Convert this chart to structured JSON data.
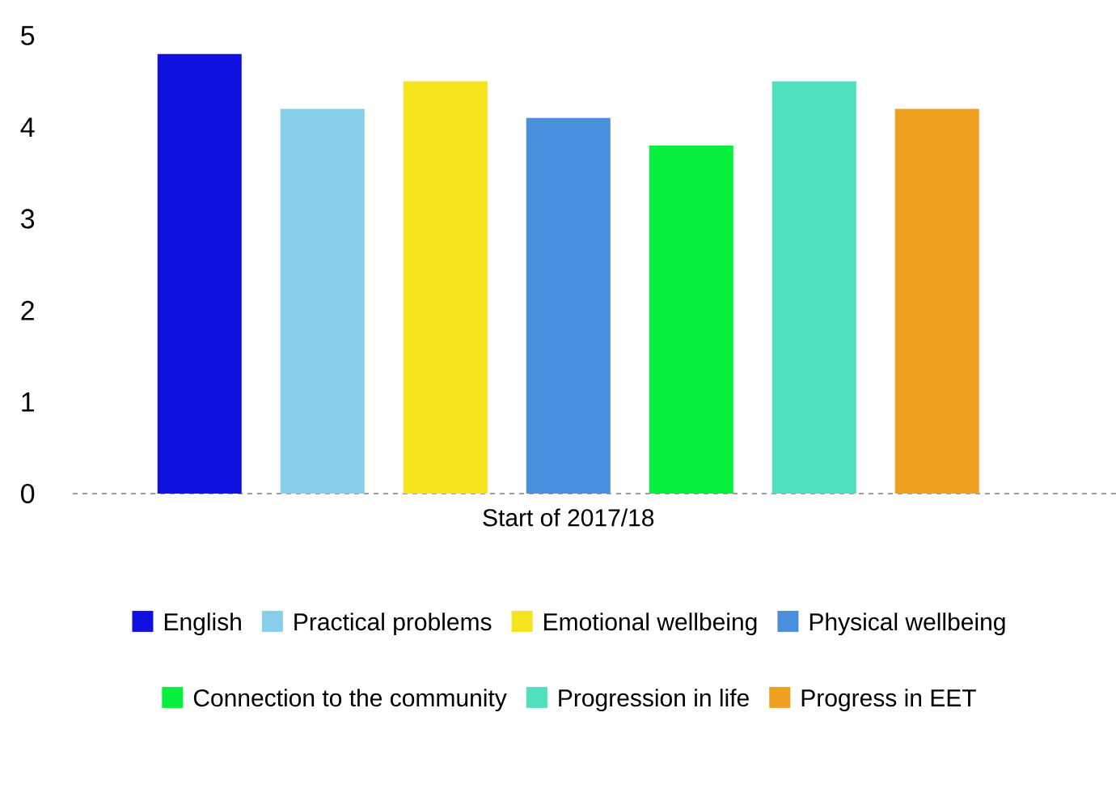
{
  "chart_data": {
    "type": "bar",
    "categories": [
      "Start of 2017/18"
    ],
    "series": [
      {
        "name": "English",
        "color": "#1010e0",
        "values": [
          4.8
        ]
      },
      {
        "name": "Practical problems",
        "color": "#87ceeb",
        "values": [
          4.2
        ]
      },
      {
        "name": "Emotional wellbeing",
        "color": "#f5e31e",
        "values": [
          4.5
        ]
      },
      {
        "name": "Physical wellbeing",
        "color": "#4a8ede",
        "values": [
          4.1
        ]
      },
      {
        "name": "Connection to the community",
        "color": "#08ee3c",
        "values": [
          3.8
        ]
      },
      {
        "name": "Progression in life",
        "color": "#50e0c0",
        "values": [
          4.5
        ]
      },
      {
        "name": "Progress in EET",
        "color": "#f0a020",
        "values": [
          4.2
        ]
      }
    ],
    "ylim": [
      0,
      5
    ],
    "yticks": [
      0,
      1,
      2,
      3,
      4,
      5
    ],
    "legend": "bottom"
  }
}
